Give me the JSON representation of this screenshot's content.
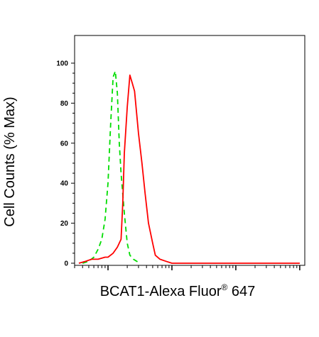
{
  "chart_data": {
    "type": "line",
    "xlabel": "BCAT1-Alexa Fluor",
    "xlabel_sup": "®",
    "xlabel_suffix": " 647",
    "ylabel": "Cell Counts (% Max)",
    "ylim": [
      0,
      100
    ],
    "yticks": [
      "0",
      "20",
      "40",
      "60",
      "80",
      "100"
    ],
    "xscale": "log",
    "xlim": [
      0.3,
      1200
    ],
    "grid": false,
    "series": [
      {
        "color": "#00dd00",
        "style": "dashed",
        "x": [
          0.4,
          0.5,
          0.6,
          0.7,
          0.8,
          0.9,
          1.0,
          1.1,
          1.2,
          1.3,
          1.4,
          1.5,
          1.6,
          1.8,
          2.0,
          2.2,
          2.5,
          2.8,
          3.2
        ],
        "y": [
          0,
          1,
          3,
          7,
          12,
          22,
          40,
          70,
          93,
          96,
          85,
          60,
          45,
          25,
          10,
          4,
          2,
          1,
          0
        ]
      },
      {
        "color": "#ff0000",
        "style": "solid",
        "x": [
          0.35,
          0.45,
          0.55,
          0.7,
          0.9,
          1.0,
          1.2,
          1.4,
          1.6,
          1.7,
          1.8,
          2.0,
          2.2,
          2.4,
          2.6,
          3.0,
          3.4,
          3.8,
          4.3,
          5.0,
          5.5,
          6.5,
          8,
          10,
          15,
          30,
          100,
          300,
          1000
        ],
        "y": [
          0,
          1,
          2,
          2,
          3,
          3,
          5,
          8,
          12,
          30,
          55,
          78,
          94,
          90,
          86,
          65,
          50,
          35,
          20,
          10,
          4,
          2,
          1,
          0,
          0,
          0,
          0,
          0,
          0
        ]
      }
    ]
  }
}
